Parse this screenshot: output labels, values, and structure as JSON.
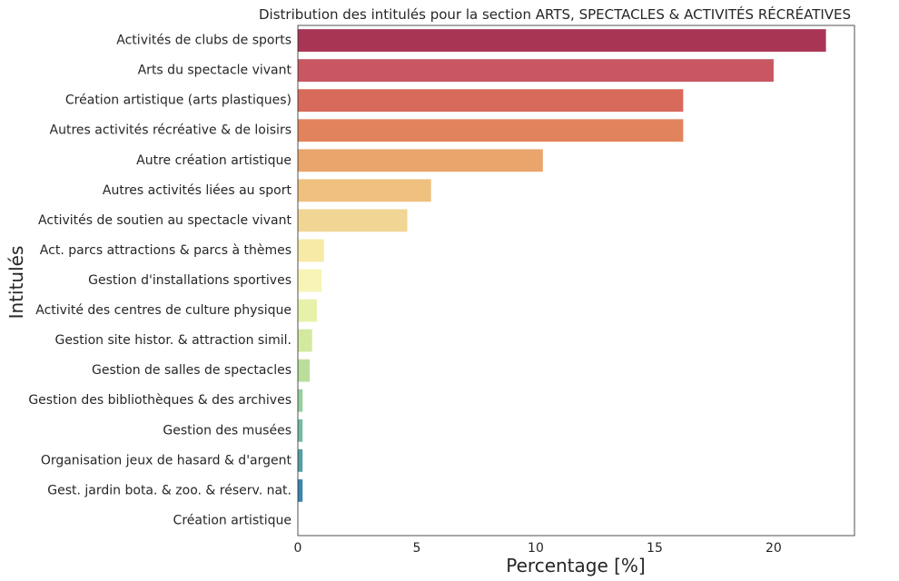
{
  "chart_data": {
    "type": "bar",
    "orientation": "horizontal",
    "title": "Distribution des intitulés pour la section ARTS, SPECTACLES & ACTIVITÉS RÉCRÉATIVES",
    "xlabel": "Percentage [%]",
    "ylabel": "Intitulés",
    "xlim": [
      0,
      23.4
    ],
    "xticks": [
      "0",
      "5",
      "10",
      "15",
      "20"
    ],
    "grid": false,
    "categories": [
      "Activités de clubs de sports",
      "Arts du spectacle vivant",
      "Création artistique (arts plastiques)",
      "Autres activités récréative & de loisirs",
      "Autre création artistique",
      "Autres activités liées au sport",
      "Activités de soutien au spectacle vivant",
      "Act. parcs attractions & parcs à thèmes",
      "Gestion d'installations sportives",
      "Activité des centres de culture physique",
      "Gestion site histor. & attraction simil.",
      "Gestion de salles de spectacles",
      "Gestion des bibliothèques & des archives",
      "Gestion des musées",
      "Organisation jeux de hasard & d'argent",
      "Gest. jardin bota. & zoo. & réserv. nat.",
      "Création artistique"
    ],
    "values": [
      22.2,
      20.0,
      16.2,
      16.2,
      10.3,
      5.6,
      4.6,
      1.1,
      1.0,
      0.8,
      0.6,
      0.5,
      0.2,
      0.2,
      0.2,
      0.2,
      0.0
    ],
    "colors": [
      "#a93554",
      "#c85762",
      "#d86a5c",
      "#e1845d",
      "#e9a56c",
      "#efc07e",
      "#f1d594",
      "#f6eaa6",
      "#f7f4b6",
      "#e8f1aa",
      "#d3e9a0",
      "#bade9b",
      "#95cf9f",
      "#74bba5",
      "#549ea6",
      "#3d84af",
      "#5a6fb0"
    ]
  }
}
